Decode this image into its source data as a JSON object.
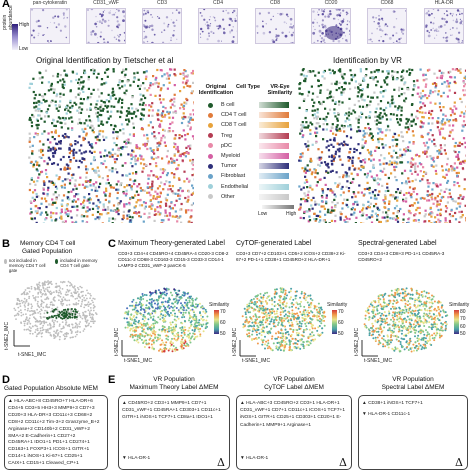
{
  "panels": {
    "A": "A",
    "B": "B",
    "C": "C",
    "D": "D",
    "E": "E"
  },
  "panel_a": {
    "markers": [
      "pan-cytokeratin",
      "CD31_vWF",
      "CD3",
      "CD4",
      "CD8",
      "CD20",
      "CD68",
      "HLA-DR"
    ],
    "intensity_label": "protein abundance",
    "intensity_high": "High",
    "intensity_low": "Low",
    "left_title": "Original Identification by Tietscher et al",
    "right_title": "Identification by VR",
    "legend_headers": {
      "original": "Original Identification",
      "cell_type": "Cell Type",
      "vr_similarity": "VR-Eye Similarity"
    },
    "cell_types": [
      {
        "name": "B cell",
        "color": "#1f5a2c"
      },
      {
        "name": "CD4 T cell",
        "color": "#e07b3a"
      },
      {
        "name": "CD8 T cell",
        "color": "#e7a23b"
      },
      {
        "name": "Treg",
        "color": "#b43c52"
      },
      {
        "name": "pDC",
        "color": "#e889a8"
      },
      {
        "name": "Myeloid",
        "color": "#d45fa3"
      },
      {
        "name": "Tumor",
        "color": "#2e2f7a"
      },
      {
        "name": "Fibroblast",
        "color": "#6aa3c9"
      },
      {
        "name": "Endothelial",
        "color": "#9fd0da"
      },
      {
        "name": "Other",
        "color": "#c9c9c9"
      }
    ],
    "similarity_low": "Low",
    "similarity_high": "High"
  },
  "panel_b": {
    "title": "Memory CD4 T cell",
    "subtitle": "Gated Population",
    "legend_not": "not included in memory CD4 T cell gate",
    "legend_in": "included in memory CD4 T cell gate",
    "x_axis": "t-SNE1_IMC",
    "y_axis": "t-SNE2_IMC"
  },
  "panel_c": [
    {
      "title": "Maximum Theory-generated Label",
      "markers": "CD3+3 CD4+4 CD45RO+4 CD45RA-4 CD20-3 CD8-2 CD11c-2 CD68-3 CD163-3 CD15-3 CD33-3 CD14-1 LAMP3-2 CD31_vWF-2 panCK-5",
      "similarity_label": "Similarity",
      "ticks": [
        "70",
        "60",
        "50"
      ],
      "x_axis": "t-SNE1_IMC",
      "y_axis": "t-SNE2_IMC"
    },
    {
      "title": "CyTOF-generated Label",
      "markers": "CD3+3 CD7+2 CD103+1 CD5+2 ICOS+2 CD38+2 Ki-67+2 PD-1+1 CD28+1 CD45RO+2 HLA-DR+1",
      "similarity_label": "Similarity",
      "ticks": [
        "70",
        "60",
        "50"
      ],
      "x_axis": "t-SNE1_IMC",
      "y_axis": "t-SNE2_IMC"
    },
    {
      "title": "Spectral-generated Label",
      "markers": "CD3+3 CD4+3 CD8+3 PD-1+1 CD45RA-3 CD45RO+2",
      "similarity_label": "Similarity",
      "ticks": [
        "80",
        "70",
        "60",
        "50"
      ],
      "x_axis": "t-SNE1_IMC",
      "y_axis": "t-SNE2_IMC"
    }
  ],
  "panel_d": {
    "title": "Gated Population Absolute MEM",
    "lines": [
      "▲ HLA-ABC+8 CD45RO+7 HLA-DR+6",
      "CD4+5 CD3+5 HH3+3 MMP9+3 CD7+3",
      "CD20+3 HLA-DR+3 CD11c+3 CD68+2",
      "CD8+2 CD11c+2 Tim-3+2 Granzyme_B+2",
      "Arginase+2 CD140b+2 CD31_vWF+2",
      "SMA+2 E-Cadherin+1 CD27+2",
      "CD45RA+1 IDO1+1 PD1+1 CD274+1",
      "CD163+1 FOXP3+1 ICOS+1 GITR+1",
      "CD14+1 iNOS+1 Ki-67+1 CD25+1",
      "CAIX+1 CD15+1 Cleaved_CP+1"
    ]
  },
  "panel_e": {
    "header_left": "VR Population",
    "columns": [
      {
        "title1": "VR Population",
        "title2": "Maximum Theory Label ΔMEM",
        "up": "▲ CD45RO+2 CD3+1 MMP9+1 CD7+1 CD31_vWF+1 CD45RA+1 CD303+1 CD11c+1 GITR+1 iNOS+1 TCF7+1 CD8a+1 IDO1+1",
        "down": "▼ HLA-DR-1",
        "delta": "Δ"
      },
      {
        "title1": "VR Population",
        "title2": "CyTOF Label ΔMEM",
        "up": "▲ HLA-ABC+3 CD45RO+2 CD3+1 HLA-DR+1 CD31_vWF+1 CD7+1 CD11c+1 ICOS+1 TCF7+1 iNOS+1 GITR+1 CD25+1 CD303+1 CD20+1 E-Cadherin+1 MMP9+1 Arginase+1",
        "down": "▼ HLA-DR-1",
        "delta": "Δ"
      },
      {
        "title1": "VR Population",
        "title2": "Spectral Label ΔMEM",
        "up": "▲ CD38+1 iNOS+1 TCF7+1",
        "down": "▼ HLA-DR-1 CD11c-1",
        "delta": "Δ"
      }
    ]
  }
}
